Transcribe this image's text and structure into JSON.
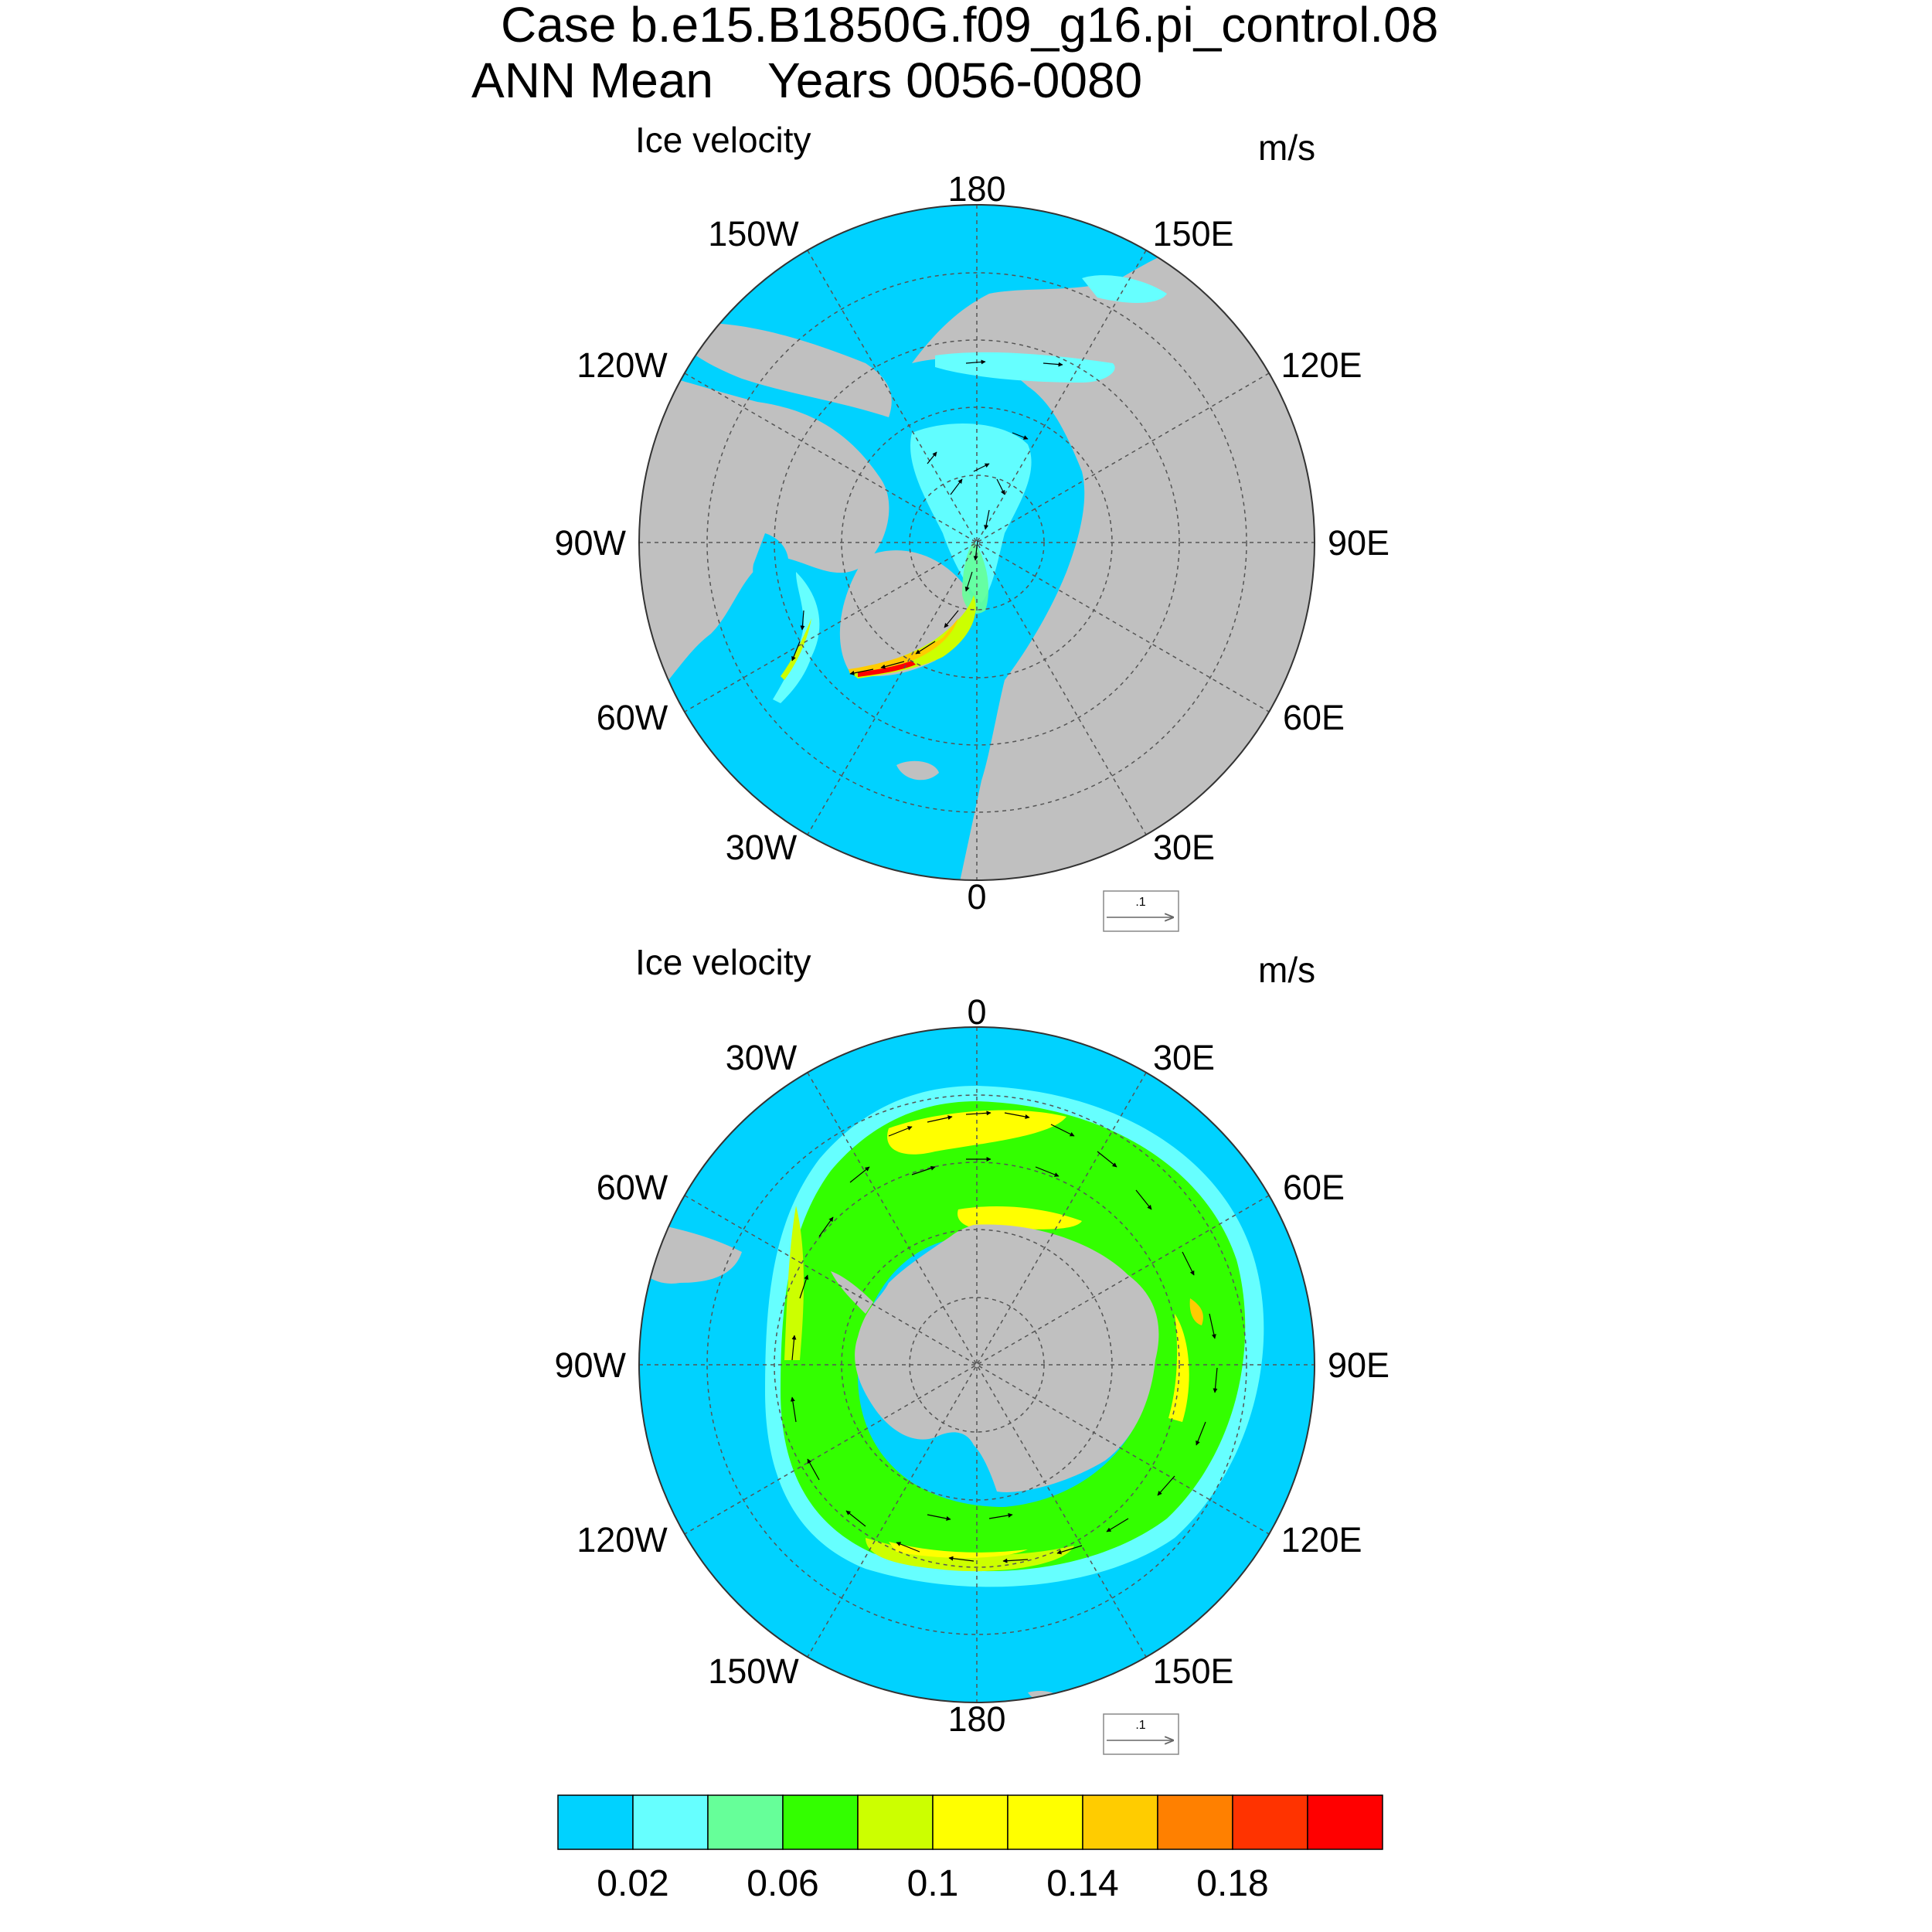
{
  "header": {
    "line1": "Case b.e15.B1850G.f09_g16.pi_control.08",
    "line2": "ANN Mean    Years 0056-0080"
  },
  "colors": {
    "ocean": "#00d2ff",
    "land": "#c0c0c0",
    "grid": "#555555",
    "arrow": "#000000"
  },
  "panels": [
    {
      "id": "north",
      "title": "Ice velocity",
      "units": "m/s",
      "hemisphere": "northern",
      "lon_labels": {
        "top": "180",
        "bottom": "0",
        "left": "90W",
        "right": "90E",
        "upper_left_1": "150W",
        "upper_left_2": "120W",
        "upper_right_1": "150E",
        "upper_right_2": "120E",
        "lower_left_1": "60W",
        "lower_left_2": "30W",
        "lower_right_1": "60E",
        "lower_right_2": "30E"
      },
      "ref_vector_label": ".1"
    },
    {
      "id": "south",
      "title": "Ice velocity",
      "units": "m/s",
      "hemisphere": "southern",
      "lon_labels": {
        "top": "0",
        "bottom": "180",
        "left": "90W",
        "right": "90E",
        "upper_left_1": "30W",
        "upper_left_2": "60W",
        "upper_right_1": "30E",
        "upper_right_2": "60E",
        "lower_left_1": "120W",
        "lower_left_2": "150W",
        "lower_right_1": "120E",
        "lower_right_2": "150E"
      },
      "ref_vector_label": ".1"
    }
  ],
  "colorbar": {
    "colors": [
      "#00d2ff",
      "#66ffff",
      "#66ff99",
      "#33ff00",
      "#ccff00",
      "#ffff00",
      "#ffff00",
      "#ffcc00",
      "#ff8000",
      "#ff3300",
      "#ff0000"
    ],
    "labels": [
      "0.02",
      "0.06",
      "0.1",
      "0.14",
      "0.18"
    ]
  }
}
